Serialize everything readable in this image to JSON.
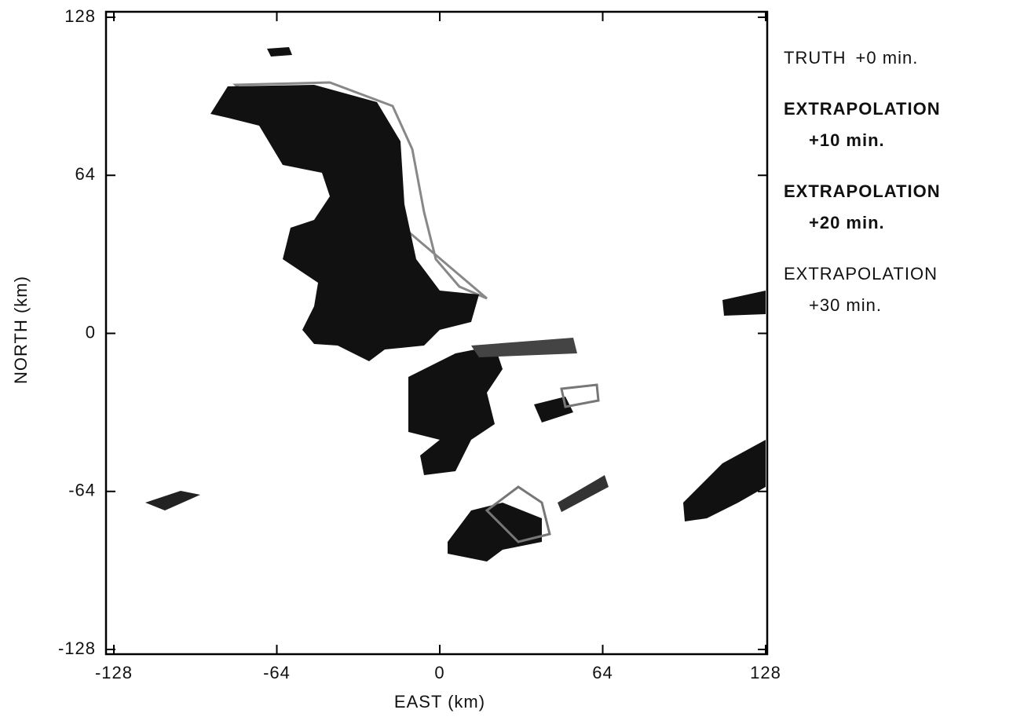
{
  "chart_data": {
    "type": "radar-map",
    "xlabel": "EAST (km)",
    "ylabel": "NORTH (km)",
    "xlim": [
      -128,
      128
    ],
    "ylim": [
      -128,
      128
    ],
    "xticks": [
      -128,
      -64,
      0,
      64,
      128
    ],
    "yticks": [
      -128,
      -64,
      0,
      64,
      128
    ],
    "legend": [
      {
        "name": "TRUTH",
        "time": "+0 min.",
        "color": "#111111"
      },
      {
        "name": "EXTRAPOLATION",
        "time": "+10 min.",
        "color": "#000000"
      },
      {
        "name": "EXTRAPOLATION",
        "time": "+20 min.",
        "color": "#222222"
      },
      {
        "name": "EXTRAPOLATION",
        "time": "+30 min.",
        "color": "#777777"
      }
    ]
  }
}
